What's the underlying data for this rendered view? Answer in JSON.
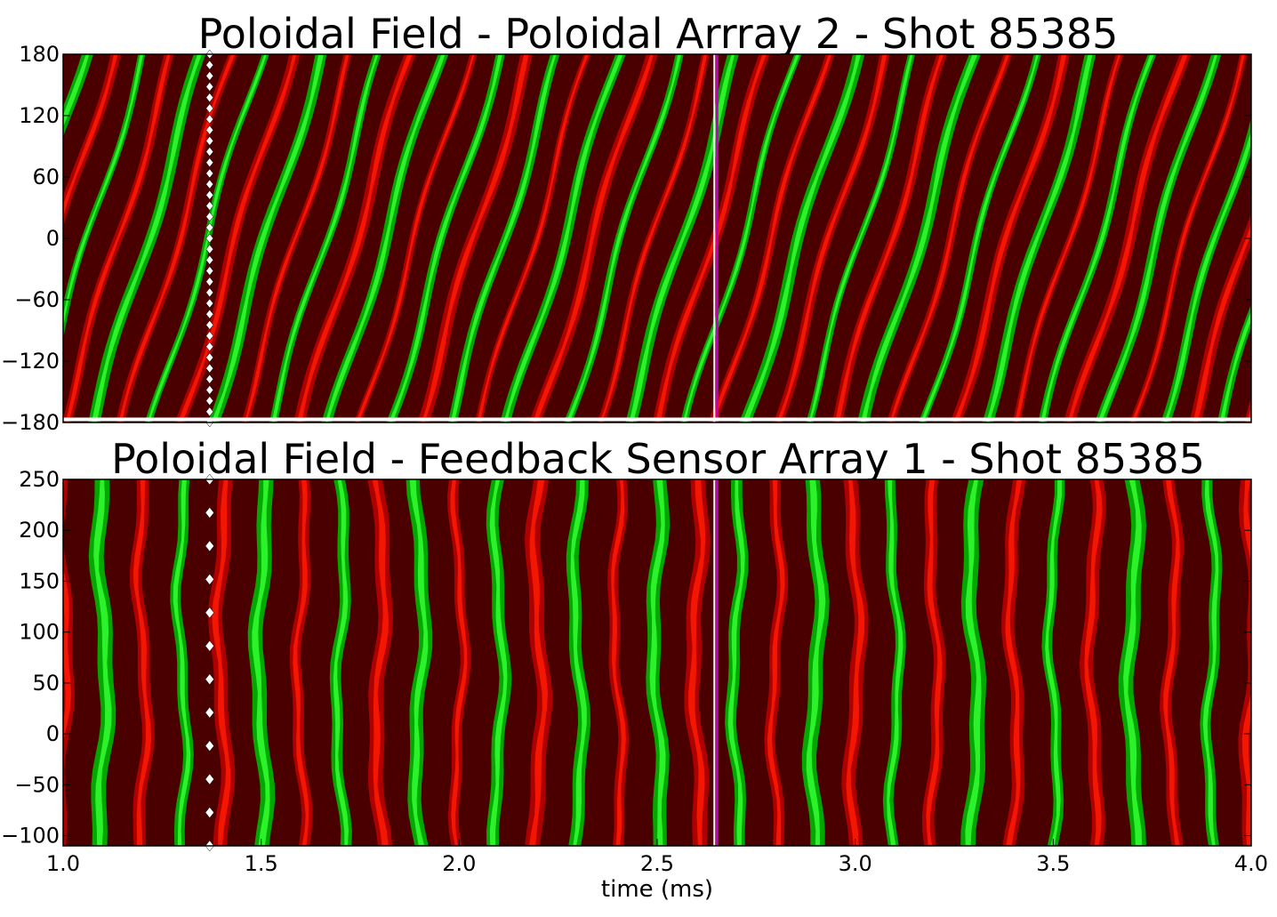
{
  "chart_data": [
    {
      "type": "heatmap",
      "title": "Poloidal Field - Poloidal Arrray 2 - Shot 85385",
      "xlabel": "",
      "ylabel": "",
      "xlim": [
        1.0,
        4.0
      ],
      "ylim": [
        -180,
        180
      ],
      "yticks": [
        180,
        120,
        60,
        0,
        -60,
        -120,
        -180
      ],
      "ytick_labels": [
        "180",
        "120",
        "60",
        "0",
        "−60",
        "−120",
        "−180"
      ],
      "colormap": [
        "#4b0000",
        "#b40000",
        "#ff1a00",
        "#ffa000",
        "#003a00",
        "#00b000",
        "#33ff33",
        "#1aa0a0"
      ],
      "pattern": {
        "period_ms": 0.075,
        "slope_deg_per_ms": 1300
      },
      "markers": [
        {
          "kind": "diamond-line",
          "x": 1.37,
          "color": "#ffffff"
        },
        {
          "kind": "vertical-line",
          "x": 2.65,
          "color": "#c000c0"
        }
      ],
      "baseline": {
        "y": -177,
        "color": "#ffffff"
      }
    },
    {
      "type": "heatmap",
      "title": "Poloidal Field - Feedback Sensor Array 1 - Shot 85385",
      "xlabel": "time (ms)",
      "ylabel": "",
      "xlim": [
        1.0,
        4.0
      ],
      "ylim": [
        -110,
        250
      ],
      "xticks": [
        1.0,
        1.5,
        2.0,
        2.5,
        3.0,
        3.5,
        4.0
      ],
      "xtick_labels": [
        "1.0",
        "1.5",
        "2.0",
        "2.5",
        "3.0",
        "3.5",
        "4.0"
      ],
      "yticks": [
        250,
        200,
        150,
        100,
        50,
        0,
        -50,
        -100
      ],
      "ytick_labels": [
        "250",
        "200",
        "150",
        "100",
        "50",
        "0",
        "−50",
        "−100"
      ],
      "colormap": [
        "#4b0000",
        "#b40000",
        "#ff1a00",
        "#ffa000",
        "#003a00",
        "#00b000",
        "#33ff33",
        "#1aa0a0"
      ],
      "pattern": {
        "period_ms": 0.1,
        "wobble_ms": 0.012
      },
      "markers": [
        {
          "kind": "diamond-line",
          "x": 1.37,
          "color": "#ffffff"
        },
        {
          "kind": "vertical-line",
          "x": 2.65,
          "color": "#c000c0"
        }
      ]
    }
  ]
}
